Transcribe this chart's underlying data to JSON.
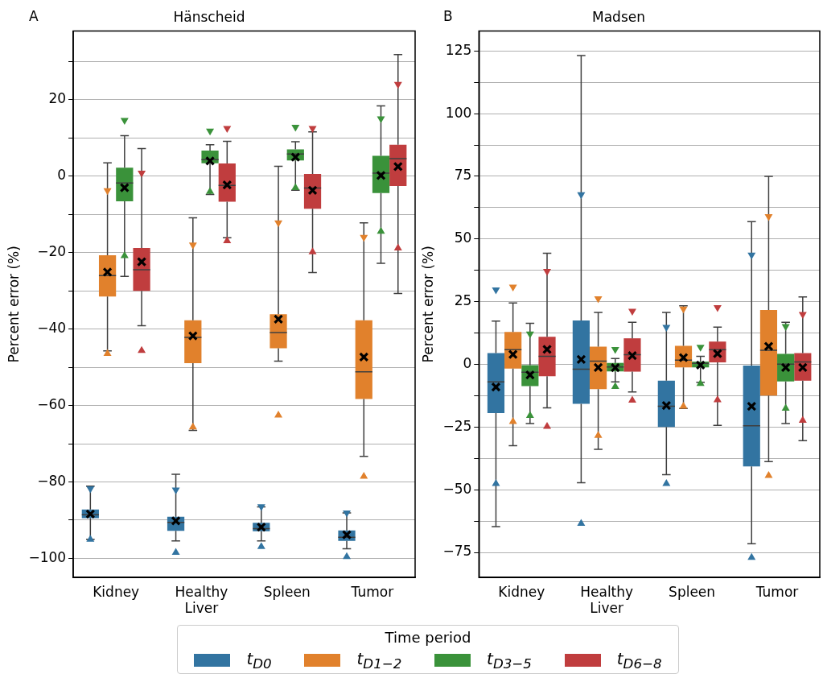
{
  "chart_data": [
    {
      "type": "box",
      "title": "Hänscheid",
      "ylabel": "Percent error (%)",
      "annotations": [
        "A"
      ],
      "categories": [
        "Kidney",
        "Healthy Liver",
        "Spleen",
        "Tumor"
      ],
      "legend": "bottom",
      "legend_title": "Time period",
      "grid": "y",
      "ylim": [
        -105,
        38
      ],
      "yticks": [
        {
          "value": -100,
          "label": "−100"
        },
        {
          "value": -90,
          "label": null
        },
        {
          "value": -80,
          "label": "−80"
        },
        {
          "value": -70,
          "label": null
        },
        {
          "value": -60,
          "label": "−60"
        },
        {
          "value": -50,
          "label": null
        },
        {
          "value": -40,
          "label": "−40"
        },
        {
          "value": -30,
          "label": null
        },
        {
          "value": -20,
          "label": "−20"
        },
        {
          "value": -10,
          "label": null
        },
        0,
        {
          "value": 10,
          "label": null
        },
        20,
        {
          "value": 30,
          "label": null
        }
      ],
      "series": [
        {
          "name": "t$_{D0}$",
          "color": "#3274a1",
          "boxes": [
            {
              "low": -95,
              "q1": -89.5,
              "median": -88.6,
              "q3": -87.2,
              "high": -81.1,
              "mean": -88.4,
              "outliers": [
                -82,
                -94.8
              ]
            },
            {
              "low": -95.4,
              "q1": -92.8,
              "median": -90.6,
              "q3": -89.1,
              "high": -78,
              "mean": -90.2,
              "outliers": [
                -82.3,
                -98.2
              ]
            },
            {
              "low": -95.4,
              "q1": -92.9,
              "median": -92.2,
              "q3": -90.7,
              "high": -86.5,
              "mean": -91.8,
              "outliers": [
                -86.7,
                -96.7
              ]
            },
            {
              "low": -97.5,
              "q1": -95.4,
              "median": -94.5,
              "q3": -92.7,
              "high": -88.1,
              "mean": -93.8,
              "outliers": [
                -88.3,
                -99.3
              ]
            }
          ]
        },
        {
          "name": "t$_{D1−2}$",
          "color": "#e1812c",
          "boxes": [
            {
              "low": -45.7,
              "q1": -31.5,
              "median": -26,
              "q3": -20.7,
              "high": 3.5,
              "mean": -25.1,
              "outliers": [
                -4,
                -46.2
              ]
            },
            {
              "low": -66.5,
              "q1": -48.9,
              "median": -42.2,
              "q3": -37.7,
              "high": -10.9,
              "mean": -41.8,
              "outliers": [
                -18.2,
                -65.4
              ]
            },
            {
              "low": -48.4,
              "q1": -45,
              "median": -40.9,
              "q3": -36.1,
              "high": 2.6,
              "mean": -37.4,
              "outliers": [
                -12.4,
                -62.3
              ]
            },
            {
              "low": -73.3,
              "q1": -58.3,
              "median": -51.2,
              "q3": -37.7,
              "high": -12.2,
              "mean": -47.3,
              "outliers": [
                -16.2,
                -78.3
              ]
            }
          ]
        },
        {
          "name": "t$_{D3−5}$",
          "color": "#3a923a",
          "boxes": [
            {
              "low": -26.2,
              "q1": -6.6,
              "median": -1.8,
              "q3": 2.2,
              "high": 10.6,
              "mean": -3,
              "outliers": [
                14.4,
                -20.6
              ]
            },
            {
              "low": -4.8,
              "q1": 3.4,
              "median": 4.3,
              "q3": 6.7,
              "high": 8.2,
              "mean": 4,
              "outliers": [
                11.6,
                -3.8
              ]
            },
            {
              "low": -3.7,
              "q1": 4.1,
              "median": 5.8,
              "q3": 7,
              "high": 9,
              "mean": 5,
              "outliers": [
                12.6,
                -2.8
              ]
            },
            {
              "low": -22.8,
              "q1": -4.4,
              "median": 0.8,
              "q3": 5.3,
              "high": 18.4,
              "mean": 0.2,
              "outliers": [
                14.8,
                -14.2
              ]
            }
          ]
        },
        {
          "name": "t$_{D6−8}$",
          "color": "#c03d3e",
          "boxes": [
            {
              "low": -39.1,
              "q1": -30,
              "median": -24.5,
              "q3": -18.8,
              "high": 7.2,
              "mean": -22.4,
              "outliers": [
                0.6,
                -45.4
              ]
            },
            {
              "low": -16.1,
              "q1": -6.7,
              "median": -2.4,
              "q3": 3.3,
              "high": 9.1,
              "mean": -2.3,
              "outliers": [
                12.3,
                -16.7
              ]
            },
            {
              "low": -25.2,
              "q1": -8.5,
              "median": -3.1,
              "q3": 0.6,
              "high": 11.6,
              "mean": -3.7,
              "outliers": [
                12.3,
                -19.6
              ]
            },
            {
              "low": -30.7,
              "q1": -2.6,
              "median": 4.6,
              "q3": 8.2,
              "high": 31.8,
              "mean": 2.5,
              "outliers": [
                23.8,
                -18.6
              ]
            }
          ]
        }
      ]
    },
    {
      "type": "box",
      "title": "Madsen",
      "ylabel": "Percent error (%)",
      "annotations": [
        "B"
      ],
      "categories": [
        "Kidney",
        "Healthy Liver",
        "Spleen",
        "Tumor"
      ],
      "grid": "y",
      "ylim": [
        -85,
        133
      ],
      "yticks": [
        {
          "value": -75,
          "label": "−75"
        },
        {
          "value": -62.5,
          "label": null
        },
        {
          "value": -50,
          "label": "−50"
        },
        {
          "value": -37.5,
          "label": null
        },
        {
          "value": -25,
          "label": "−25"
        },
        {
          "value": -12.5,
          "label": null
        },
        0,
        {
          "value": 12.5,
          "label": null
        },
        25,
        {
          "value": 37.5,
          "label": null
        },
        50,
        {
          "value": 62.5,
          "label": null
        },
        75,
        {
          "value": 87.5,
          "label": null
        },
        100,
        {
          "value": 112.5,
          "label": null
        },
        125
      ],
      "series": [
        {
          "color": "#3274a1",
          "boxes": [
            {
              "low": -64.7,
              "q1": -19.4,
              "median": -7,
              "q3": 4.5,
              "high": 17.3,
              "mean": -9,
              "outliers": [
                29.4,
                -47.2
              ]
            },
            {
              "low": -47.2,
              "q1": -15.7,
              "median": -1.9,
              "q3": 17.5,
              "high": 123.2,
              "mean": 2,
              "outliers": [
                67.4,
                -63.1
              ]
            },
            {
              "low": -44,
              "q1": -25,
              "median": -16.7,
              "q3": -6.5,
              "high": 20.7,
              "mean": -16.4,
              "outliers": [
                14.5,
                -47.2
              ]
            },
            {
              "low": -71.5,
              "q1": -40.7,
              "median": -24.5,
              "q3": -0.5,
              "high": 56.9,
              "mean": -16.7,
              "outliers": [
                43.3,
                -76.7
              ]
            }
          ]
        },
        {
          "color": "#e1812c",
          "boxes": [
            {
              "low": -32.4,
              "q1": -1.7,
              "median": 5.9,
              "q3": 12.9,
              "high": 24.5,
              "mean": 4,
              "outliers": [
                30.5,
                -22.5
              ]
            },
            {
              "low": -33.9,
              "q1": -9.9,
              "median": 1.3,
              "q3": 7.1,
              "high": 20.7,
              "mean": -1.2,
              "outliers": [
                25.9,
                -28
              ]
            },
            {
              "low": -17.6,
              "q1": -1.2,
              "median": 1.7,
              "q3": 7.4,
              "high": 23.4,
              "mean": 2.7,
              "outliers": [
                21.8,
                -16.4
              ]
            },
            {
              "low": -38.8,
              "q1": -12.4,
              "median": 5.6,
              "q3": 21.7,
              "high": 75,
              "mean": 7.2,
              "outliers": [
                58.6,
                -44
              ]
            }
          ]
        },
        {
          "color": "#3a923a",
          "boxes": [
            {
              "low": -23.6,
              "q1": -8.7,
              "median": -3.1,
              "q3": -0.3,
              "high": 16.4,
              "mean": -4.2,
              "outliers": [
                11.8,
                -20.1
              ]
            },
            {
              "low": -7,
              "q1": -2.8,
              "median": -1,
              "q3": 0.6,
              "high": 2.3,
              "mean": -1.3,
              "outliers": [
                5.6,
                -8.5
              ]
            },
            {
              "low": -7.1,
              "q1": -1.2,
              "median": 0.4,
              "q3": 1.1,
              "high": 3.2,
              "mean": -0.3,
              "outliers": [
                6.5,
                -7.3
              ]
            },
            {
              "low": -23.6,
              "q1": -6.8,
              "median": 0.1,
              "q3": 4.2,
              "high": 16.8,
              "mean": -1.2,
              "outliers": [
                14.8,
                -17.2
              ]
            }
          ]
        },
        {
          "color": "#c03d3e",
          "boxes": [
            {
              "low": -17.3,
              "q1": -4.7,
              "median": 3.2,
              "q3": 11,
              "high": 44.3,
              "mean": 6,
              "outliers": [
                36.8,
                -24.4
              ]
            },
            {
              "low": -11,
              "q1": -2.9,
              "median": 3.9,
              "q3": 10.4,
              "high": 16.8,
              "mean": 3.5,
              "outliers": [
                20.9,
                -14
              ]
            },
            {
              "low": -24.3,
              "q1": 0.8,
              "median": 5.9,
              "q3": 9.1,
              "high": 14.9,
              "mean": 4.3,
              "outliers": [
                22.3,
                -13.8
              ]
            },
            {
              "low": -30.4,
              "q1": -6.5,
              "median": 1,
              "q3": 4.5,
              "high": 26.9,
              "mean": -1.2,
              "outliers": [
                19.6,
                -22
              ]
            }
          ]
        }
      ]
    }
  ]
}
